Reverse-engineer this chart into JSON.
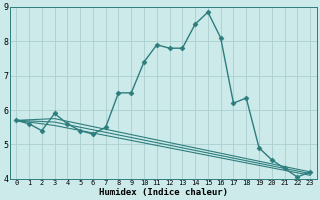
{
  "xlabel": "Humidex (Indice chaleur)",
  "bg_color": "#cceaea",
  "line_color": "#2e7d7d",
  "grid_color": "#aacfcf",
  "xlim": [
    -0.5,
    23.5
  ],
  "ylim": [
    4,
    9
  ],
  "yticks": [
    4,
    5,
    6,
    7,
    8,
    9
  ],
  "xticks": [
    0,
    1,
    2,
    3,
    4,
    5,
    6,
    7,
    8,
    9,
    10,
    11,
    12,
    13,
    14,
    15,
    16,
    17,
    18,
    19,
    20,
    21,
    22,
    23
  ],
  "series": [
    {
      "x": [
        0,
        1,
        2,
        3,
        4,
        5,
        6,
        7,
        8,
        9,
        10,
        11,
        12,
        13,
        14,
        15,
        16,
        17,
        18,
        19,
        20,
        21,
        22,
        23
      ],
      "y": [
        5.7,
        5.6,
        5.4,
        5.9,
        5.6,
        5.4,
        5.3,
        5.5,
        6.5,
        6.5,
        7.4,
        7.9,
        7.8,
        7.8,
        8.5,
        8.85,
        8.1,
        6.2,
        6.35,
        4.9,
        4.55,
        4.3,
        4.05,
        4.2
      ],
      "marker": "D",
      "markersize": 2.5,
      "linestyle": "-",
      "linewidth": 1.0
    },
    {
      "x": [
        0,
        3,
        23
      ],
      "y": [
        5.7,
        5.75,
        4.2
      ],
      "marker": null,
      "markersize": 0,
      "linestyle": "-",
      "linewidth": 0.8
    },
    {
      "x": [
        0,
        3,
        23
      ],
      "y": [
        5.7,
        5.65,
        4.15
      ],
      "marker": null,
      "markersize": 0,
      "linestyle": "-",
      "linewidth": 0.8
    },
    {
      "x": [
        0,
        3,
        23
      ],
      "y": [
        5.7,
        5.55,
        4.1
      ],
      "marker": null,
      "markersize": 0,
      "linestyle": "-",
      "linewidth": 0.8
    }
  ]
}
